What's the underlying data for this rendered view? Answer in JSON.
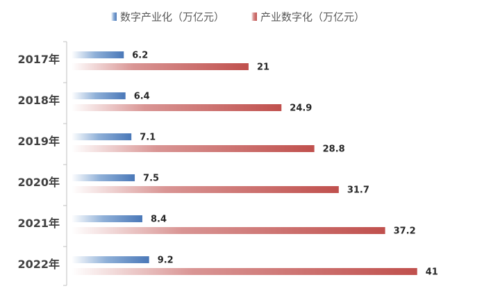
{
  "chart_data": {
    "type": "bar",
    "orientation": "horizontal",
    "categories": [
      "2017年",
      "2018年",
      "2019年",
      "2020年",
      "2021年",
      "2022年"
    ],
    "series": [
      {
        "name": "数字产业化（万亿元）",
        "values": [
          6.2,
          6.4,
          7.1,
          7.5,
          8.4,
          9.2
        ],
        "color": "#4F81BD"
      },
      {
        "name": "产业数字化（万亿元）",
        "values": [
          21,
          24.9,
          28.8,
          31.7,
          37.2,
          41
        ],
        "color": "#C0504D"
      }
    ],
    "xlim": [
      0,
      45
    ],
    "grid": false,
    "legend": "top"
  }
}
